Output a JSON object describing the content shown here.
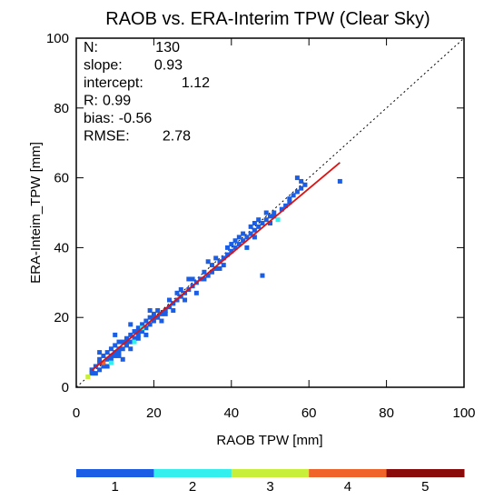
{
  "chart_data": {
    "type": "scatter",
    "title": "RAOB vs. ERA-Interim TPW (Clear Sky)",
    "xlabel": "RAOB TPW [mm]",
    "ylabel": "ERA-Inteim_TPW [mm]",
    "xlim": [
      0,
      100
    ],
    "ylim": [
      0,
      100
    ],
    "xticks": [
      "0",
      "20",
      "40",
      "60",
      "80",
      "100"
    ],
    "yticks": [
      "0",
      "20",
      "40",
      "60",
      "80",
      "100"
    ],
    "stats": [
      {
        "label": "N:",
        "value": "130"
      },
      {
        "label": "slope:",
        "value": "0.93"
      },
      {
        "label": "intercept:",
        "value": "1.12"
      },
      {
        "label": "R:",
        "value": "0.99"
      },
      {
        "label": "bias:",
        "value": "-0.56"
      },
      {
        "label": "RMSE:",
        "value": "2.78"
      }
    ],
    "fit_line": {
      "slope": 0.93,
      "intercept": 1.12,
      "x_range": [
        4,
        68
      ],
      "color": "#e01010"
    },
    "one_to_one_line": {
      "style": "dotted",
      "color": "#000000"
    },
    "colorbar": {
      "labels": [
        "1",
        "2",
        "3",
        "4",
        "5"
      ],
      "colors": [
        "#1a5ee6",
        "#33f0ee",
        "#c8f03a",
        "#f0642a",
        "#8b0a0a"
      ]
    },
    "points": [
      {
        "x": 4,
        "y": 4,
        "c": 1
      },
      {
        "x": 5,
        "y": 4,
        "c": 1
      },
      {
        "x": 5,
        "y": 6,
        "c": 1
      },
      {
        "x": 6,
        "y": 5,
        "c": 1
      },
      {
        "x": 6,
        "y": 8,
        "c": 1
      },
      {
        "x": 6,
        "y": 10,
        "c": 1
      },
      {
        "x": 7,
        "y": 6,
        "c": 1
      },
      {
        "x": 7,
        "y": 9,
        "c": 1
      },
      {
        "x": 7,
        "y": 7,
        "c": 4
      },
      {
        "x": 8,
        "y": 6,
        "c": 1
      },
      {
        "x": 8,
        "y": 8,
        "c": 1
      },
      {
        "x": 8,
        "y": 10,
        "c": 1
      },
      {
        "x": 9,
        "y": 8,
        "c": 1
      },
      {
        "x": 9,
        "y": 11,
        "c": 1
      },
      {
        "x": 9,
        "y": 7,
        "c": 2
      },
      {
        "x": 10,
        "y": 9,
        "c": 1
      },
      {
        "x": 10,
        "y": 10,
        "c": 1
      },
      {
        "x": 10,
        "y": 12,
        "c": 1
      },
      {
        "x": 11,
        "y": 10,
        "c": 1
      },
      {
        "x": 11,
        "y": 13,
        "c": 1
      },
      {
        "x": 11,
        "y": 9,
        "c": 1
      },
      {
        "x": 12,
        "y": 11,
        "c": 1
      },
      {
        "x": 12,
        "y": 8,
        "c": 1
      },
      {
        "x": 12,
        "y": 13,
        "c": 1
      },
      {
        "x": 13,
        "y": 12,
        "c": 1
      },
      {
        "x": 13,
        "y": 14,
        "c": 1
      },
      {
        "x": 14,
        "y": 13,
        "c": 1
      },
      {
        "x": 14,
        "y": 15,
        "c": 1
      },
      {
        "x": 14,
        "y": 11,
        "c": 1
      },
      {
        "x": 15,
        "y": 14,
        "c": 1
      },
      {
        "x": 15,
        "y": 16,
        "c": 1
      },
      {
        "x": 15,
        "y": 13,
        "c": 2
      },
      {
        "x": 16,
        "y": 15,
        "c": 1
      },
      {
        "x": 16,
        "y": 17,
        "c": 1
      },
      {
        "x": 16,
        "y": 14,
        "c": 1
      },
      {
        "x": 17,
        "y": 16,
        "c": 1
      },
      {
        "x": 17,
        "y": 18,
        "c": 1
      },
      {
        "x": 18,
        "y": 17,
        "c": 1
      },
      {
        "x": 18,
        "y": 19,
        "c": 1
      },
      {
        "x": 18,
        "y": 15,
        "c": 1
      },
      {
        "x": 19,
        "y": 18,
        "c": 1
      },
      {
        "x": 19,
        "y": 20,
        "c": 1
      },
      {
        "x": 20,
        "y": 19,
        "c": 1
      },
      {
        "x": 20,
        "y": 21,
        "c": 1
      },
      {
        "x": 21,
        "y": 20,
        "c": 1
      },
      {
        "x": 22,
        "y": 21,
        "c": 1
      },
      {
        "x": 22,
        "y": 19,
        "c": 1
      },
      {
        "x": 23,
        "y": 22,
        "c": 1
      },
      {
        "x": 24,
        "y": 23,
        "c": 1
      },
      {
        "x": 25,
        "y": 24,
        "c": 1
      },
      {
        "x": 25,
        "y": 22,
        "c": 1
      },
      {
        "x": 26,
        "y": 25,
        "c": 1
      },
      {
        "x": 27,
        "y": 26,
        "c": 1
      },
      {
        "x": 28,
        "y": 27,
        "c": 1
      },
      {
        "x": 28,
        "y": 25,
        "c": 1
      },
      {
        "x": 29,
        "y": 28,
        "c": 1
      },
      {
        "x": 30,
        "y": 29,
        "c": 1
      },
      {
        "x": 31,
        "y": 30,
        "c": 1
      },
      {
        "x": 31,
        "y": 27,
        "c": 1
      },
      {
        "x": 32,
        "y": 31,
        "c": 1
      },
      {
        "x": 33,
        "y": 33,
        "c": 1
      },
      {
        "x": 34,
        "y": 32,
        "c": 1
      },
      {
        "x": 35,
        "y": 35,
        "c": 1
      },
      {
        "x": 35,
        "y": 33,
        "c": 1
      },
      {
        "x": 36,
        "y": 34,
        "c": 1
      },
      {
        "x": 37,
        "y": 36,
        "c": 1
      },
      {
        "x": 38,
        "y": 37,
        "c": 1
      },
      {
        "x": 38,
        "y": 35,
        "c": 1
      },
      {
        "x": 39,
        "y": 38,
        "c": 1
      },
      {
        "x": 40,
        "y": 39,
        "c": 1
      },
      {
        "x": 40,
        "y": 41,
        "c": 1
      },
      {
        "x": 41,
        "y": 40,
        "c": 1
      },
      {
        "x": 42,
        "y": 41,
        "c": 1
      },
      {
        "x": 43,
        "y": 42,
        "c": 1
      },
      {
        "x": 44,
        "y": 43,
        "c": 1
      },
      {
        "x": 44,
        "y": 40,
        "c": 1
      },
      {
        "x": 45,
        "y": 44,
        "c": 1
      },
      {
        "x": 46,
        "y": 45,
        "c": 1
      },
      {
        "x": 46,
        "y": 47,
        "c": 1
      },
      {
        "x": 47,
        "y": 46,
        "c": 1
      },
      {
        "x": 48,
        "y": 47,
        "c": 1
      },
      {
        "x": 48,
        "y": 32,
        "c": 1
      },
      {
        "x": 49,
        "y": 48,
        "c": 1
      },
      {
        "x": 50,
        "y": 49,
        "c": 1
      },
      {
        "x": 50,
        "y": 47,
        "c": 1
      },
      {
        "x": 51,
        "y": 49,
        "c": 1
      },
      {
        "x": 52,
        "y": 48,
        "c": 2
      },
      {
        "x": 53,
        "y": 51,
        "c": 1
      },
      {
        "x": 54,
        "y": 52,
        "c": 1
      },
      {
        "x": 55,
        "y": 54,
        "c": 1
      },
      {
        "x": 56,
        "y": 55,
        "c": 1
      },
      {
        "x": 57,
        "y": 56,
        "c": 1
      },
      {
        "x": 57,
        "y": 60,
        "c": 1
      },
      {
        "x": 58,
        "y": 57,
        "c": 1
      },
      {
        "x": 59,
        "y": 58,
        "c": 1
      },
      {
        "x": 68,
        "y": 59,
        "c": 1
      },
      {
        "x": 3,
        "y": 3,
        "c": 3
      },
      {
        "x": 4,
        "y": 5,
        "c": 1
      },
      {
        "x": 9,
        "y": 9,
        "c": 1
      },
      {
        "x": 13,
        "y": 13,
        "c": 1
      },
      {
        "x": 17,
        "y": 17,
        "c": 2
      },
      {
        "x": 21,
        "y": 22,
        "c": 1
      },
      {
        "x": 24,
        "y": 25,
        "c": 1
      },
      {
        "x": 27,
        "y": 28,
        "c": 1
      },
      {
        "x": 30,
        "y": 31,
        "c": 1
      },
      {
        "x": 33,
        "y": 31,
        "c": 1
      },
      {
        "x": 36,
        "y": 37,
        "c": 1
      },
      {
        "x": 39,
        "y": 40,
        "c": 1
      },
      {
        "x": 42,
        "y": 43,
        "c": 1
      },
      {
        "x": 45,
        "y": 46,
        "c": 1
      },
      {
        "x": 47,
        "y": 48,
        "c": 1
      },
      {
        "x": 49,
        "y": 50,
        "c": 1
      },
      {
        "x": 10,
        "y": 15,
        "c": 1
      },
      {
        "x": 14,
        "y": 18,
        "c": 1
      },
      {
        "x": 19,
        "y": 22,
        "c": 1
      },
      {
        "x": 23,
        "y": 21,
        "c": 1
      },
      {
        "x": 26,
        "y": 27,
        "c": 1
      },
      {
        "x": 29,
        "y": 31,
        "c": 1
      },
      {
        "x": 34,
        "y": 36,
        "c": 1
      },
      {
        "x": 37,
        "y": 34,
        "c": 1
      },
      {
        "x": 41,
        "y": 42,
        "c": 1
      },
      {
        "x": 43,
        "y": 44,
        "c": 1
      },
      {
        "x": 46,
        "y": 43,
        "c": 1
      },
      {
        "x": 51,
        "y": 50,
        "c": 1
      },
      {
        "x": 55,
        "y": 53,
        "c": 1
      },
      {
        "x": 58,
        "y": 59,
        "c": 1
      },
      {
        "x": 6,
        "y": 7,
        "c": 1
      },
      {
        "x": 11,
        "y": 11,
        "c": 1
      },
      {
        "x": 16,
        "y": 16,
        "c": 1
      },
      {
        "x": 20,
        "y": 20,
        "c": 1
      }
    ]
  }
}
